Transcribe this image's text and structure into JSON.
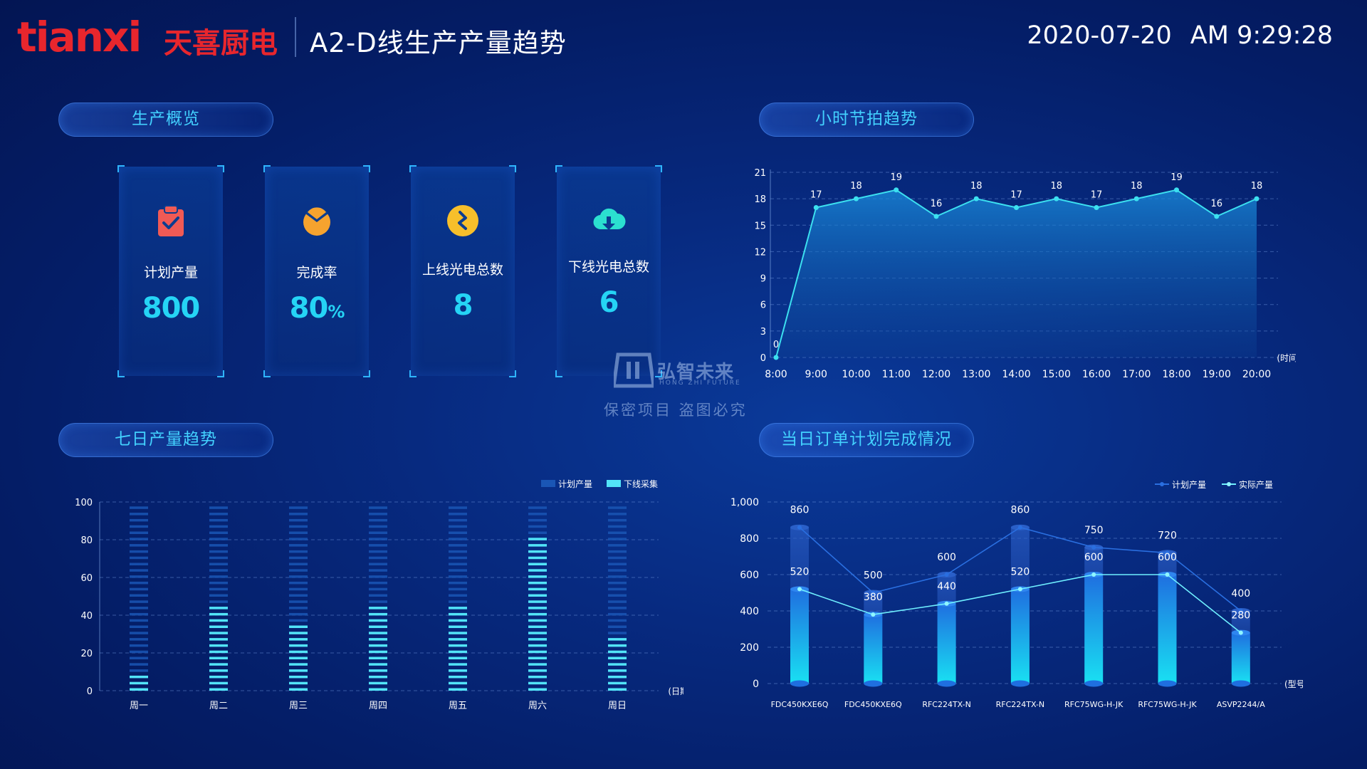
{
  "header": {
    "logo_text": "tianxi",
    "logo_cn": "天喜厨电",
    "title": "A2-D线生产产量趋势",
    "date": "2020-07-20",
    "time": "AM 9:29:28"
  },
  "tabs": {
    "overview": "生产概览",
    "hourly": "小时节拍趋势",
    "weekly": "七日产量趋势",
    "orders": "当日订单计划完成情况"
  },
  "kpis": [
    {
      "label": "计划产量",
      "value": "800",
      "unit": "",
      "icon": "clipboard-check-icon",
      "color": "#f05a55"
    },
    {
      "label": "完成率",
      "value": "80",
      "unit": "%",
      "icon": "pie-chart-icon",
      "color": "#f6a32e"
    },
    {
      "label": "上线光电总数",
      "value": "8",
      "unit": "",
      "icon": "lightning-coin-icon",
      "color": "#f7bf2b"
    },
    {
      "label": "下线光电总数",
      "value": "6",
      "unit": "",
      "icon": "cloud-download-icon",
      "color": "#2be0d0"
    }
  ],
  "watermark": {
    "brand": "弘智未来",
    "brand_en": "HONG ZHI FUTURE",
    "note": "保密项目  盗图必究"
  },
  "chart_data": [
    {
      "id": "hourly",
      "type": "area",
      "x": [
        "8:00",
        "9:00",
        "10:00",
        "11:00",
        "12:00",
        "13:00",
        "14:00",
        "15:00",
        "16:00",
        "17:00",
        "18:00",
        "19:00",
        "20:00"
      ],
      "values": [
        0,
        17,
        18,
        19,
        16,
        18,
        17,
        18,
        17,
        18,
        19,
        16,
        18
      ],
      "ylim": [
        0,
        21
      ],
      "yticks": [
        0,
        3,
        6,
        9,
        12,
        15,
        18,
        21
      ],
      "xlabel": "(时间)",
      "grid": true,
      "line_color": "#3ce0f0"
    },
    {
      "id": "weekly",
      "type": "bar",
      "categories": [
        "周一",
        "周二",
        "周三",
        "周四",
        "周五",
        "周六",
        "周日"
      ],
      "series": [
        {
          "name": "计划产量",
          "values": [
            100,
            100,
            100,
            100,
            100,
            100,
            100
          ],
          "color": "#1a56b5"
        },
        {
          "name": "下线采集",
          "values": [
            10,
            46,
            37,
            46,
            46,
            82,
            28
          ],
          "color": "#52e4f8"
        }
      ],
      "ylim": [
        0,
        100
      ],
      "yticks": [
        0,
        20,
        40,
        60,
        80,
        100
      ],
      "xlabel": "(日期)",
      "legend": "top-right",
      "grid": true
    },
    {
      "id": "orders",
      "type": "bar",
      "categories": [
        "FDC450KXE6Q",
        "FDC450KXE6Q",
        "RFC224TX-N",
        "RFC224TX-N",
        "RFC75WG-H-JK",
        "RFC75WG-H-JK",
        "ASVP2244/A"
      ],
      "series": [
        {
          "name": "计划产量",
          "values": [
            860,
            500,
            600,
            860,
            750,
            720,
            400
          ],
          "color": "#1f5fcf"
        },
        {
          "name": "实际产量",
          "values": [
            520,
            380,
            440,
            520,
            600,
            600,
            280
          ],
          "color": "#2ee7f5"
        }
      ],
      "ylim": [
        0,
        1000
      ],
      "yticks": [
        0,
        200,
        400,
        600,
        800,
        1000
      ],
      "ytick_labels": [
        "0",
        "200",
        "400",
        "600",
        "800",
        "1,000"
      ],
      "xlabel": "(型号)",
      "legend": "top-right",
      "grid": true
    }
  ]
}
